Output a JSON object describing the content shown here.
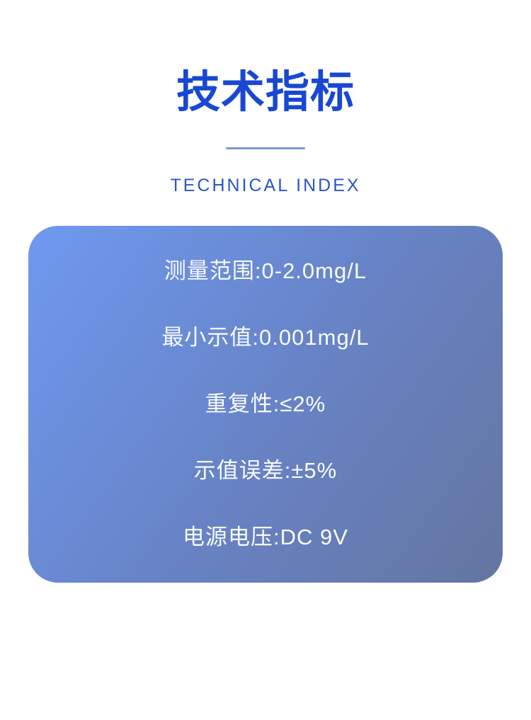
{
  "theme": {
    "page_background": "#ffffff",
    "title_color": "#1848d2",
    "subtitle_color": "#2a56c6",
    "divider_color": "#7d99d3",
    "card_gradient_start": "#6f99ef",
    "card_gradient_mid": "#6884c8",
    "card_gradient_end": "#64769f",
    "card_text_color": "#f8fbff"
  },
  "header": {
    "title": "技术指标",
    "subtitle": "TECHNICAL INDEX"
  },
  "spec_card": {
    "rows": [
      {
        "label": "测量范围",
        "value": "0-2.0mg/L",
        "text": "测量范围:0-2.0mg/L"
      },
      {
        "label": "最小示值",
        "value": "0.001mg/L",
        "text": "最小示值:0.001mg/L"
      },
      {
        "label": "重复性",
        "value": "≤2%",
        "text": "重复性:≤2%"
      },
      {
        "label": "示值误差",
        "value": "±5%",
        "text": "示值误差:±5%"
      },
      {
        "label": "电源电压",
        "value": "DC 9V",
        "text": "电源电压:DC 9V"
      }
    ]
  }
}
